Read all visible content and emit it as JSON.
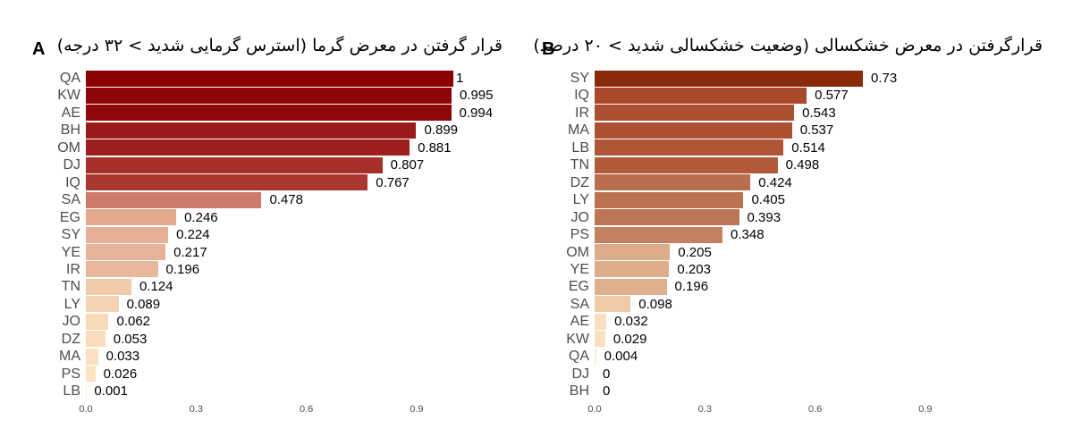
{
  "chart_data": [
    {
      "type": "bar",
      "orientation": "horizontal",
      "panel": "A",
      "title": "قرار گرفتن در معرض گرما (استرس گرمایی شدید > ۳۲ درجه)",
      "xlabel": "",
      "ylabel": "",
      "xlim": [
        0,
        1.0
      ],
      "xticks": [
        "0.0",
        "0.3",
        "0.6",
        "0.9"
      ],
      "grid": false,
      "categories": [
        "QA",
        "KW",
        "AE",
        "BH",
        "OM",
        "DJ",
        "IQ",
        "SA",
        "EG",
        "SY",
        "YE",
        "IR",
        "TN",
        "LY",
        "JO",
        "DZ",
        "MA",
        "PS",
        "LB"
      ],
      "values": [
        1,
        0.995,
        0.994,
        0.899,
        0.881,
        0.807,
        0.767,
        0.478,
        0.246,
        0.224,
        0.217,
        0.196,
        0.124,
        0.089,
        0.062,
        0.053,
        0.033,
        0.026,
        0.001
      ],
      "labels": [
        "1",
        "0.995",
        "0.994",
        "0.899",
        "0.881",
        "0.807",
        "0.767",
        "0.478",
        "0.246",
        "0.224",
        "0.217",
        "0.196",
        "0.124",
        "0.089",
        "0.062",
        "0.053",
        "0.033",
        "0.026",
        "0.001"
      ],
      "colors": [
        "#8b0000",
        "#8d0508",
        "#8e0709",
        "#9b1a1a",
        "#9c1e1d",
        "#a63029",
        "#aa3830",
        "#cd7a6a",
        "#e3a98f",
        "#e5b096",
        "#e6b298",
        "#e8b79c",
        "#f1cba9",
        "#f6d4b3",
        "#f8dab9",
        "#f9dcbb",
        "#fbe1c1",
        "#fbe3c3",
        "#fdeccf"
      ]
    },
    {
      "type": "bar",
      "orientation": "horizontal",
      "panel": "B",
      "title": "قرارگرفتن در معرض خشکسالی (وضعیت خشکسالی شدید > ۲۰ درصد)",
      "xlabel": "",
      "ylabel": "",
      "xlim": [
        0,
        1.0
      ],
      "xticks": [
        "0.0",
        "0.3",
        "0.6",
        "0.9"
      ],
      "grid": false,
      "categories": [
        "SY",
        "IQ",
        "IR",
        "MA",
        "LB",
        "TN",
        "DZ",
        "LY",
        "JO",
        "PS",
        "OM",
        "YE",
        "EG",
        "SA",
        "AE",
        "KW",
        "QA",
        "DJ",
        "BH"
      ],
      "values": [
        0.73,
        0.577,
        0.543,
        0.537,
        0.514,
        0.498,
        0.424,
        0.405,
        0.393,
        0.348,
        0.205,
        0.203,
        0.196,
        0.098,
        0.032,
        0.029,
        0.004,
        0,
        0
      ],
      "labels": [
        "0.73",
        "0.577",
        "0.543",
        "0.537",
        "0.514",
        "0.498",
        "0.424",
        "0.405",
        "0.393",
        "0.348",
        "0.205",
        "0.203",
        "0.196",
        "0.098",
        "0.032",
        "0.029",
        "0.004",
        "0",
        "0"
      ],
      "colors": [
        "#8a2a0a",
        "#a84a2a",
        "#ab4f30",
        "#ac5132",
        "#ae5636",
        "#b05a3a",
        "#ba6d4e",
        "#bc7152",
        "#be7555",
        "#c48263",
        "#ddac89",
        "#ddad8a",
        "#dfb08d",
        "#f0c9a6",
        "#f9dfc0",
        "#f9e0c1",
        "#fdeed3",
        "#ffffff",
        "#ffffff"
      ]
    }
  ],
  "panels": {
    "a": {
      "letter": "A"
    },
    "b": {
      "letter": "B"
    }
  }
}
